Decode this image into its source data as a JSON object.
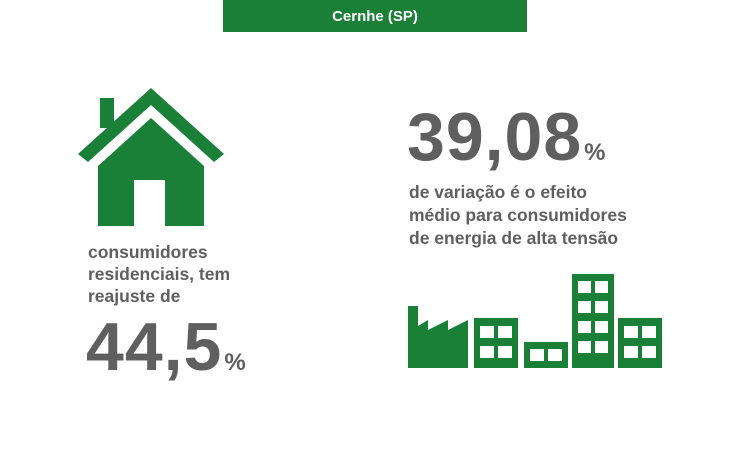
{
  "banner": {
    "title": "Cernhe (SP)"
  },
  "residential": {
    "caption_line1": "consumidores",
    "caption_line2": "residenciais, tem",
    "caption_line3": "reajuste de",
    "value": "44,5",
    "unit": "%",
    "icon": "house-icon"
  },
  "industrial": {
    "value": "39,08",
    "unit": "%",
    "caption_line1": "de variação é o efeito",
    "caption_line2": "médio para consumidores",
    "caption_line3": "de energia de alta tensão",
    "icon": "industry-buildings-icon"
  },
  "colors": {
    "brand_green": "#1a7f37",
    "text_gray": "#5f5f5f"
  }
}
